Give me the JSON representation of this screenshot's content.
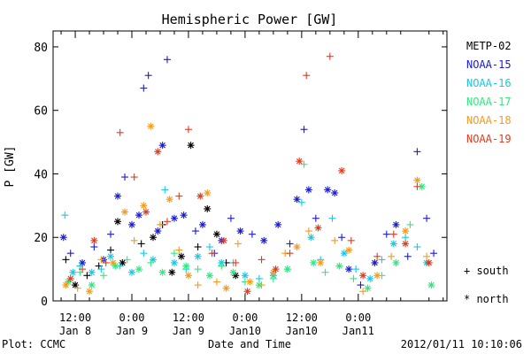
{
  "chart_data": {
    "type": "scatter",
    "title": "Hemispheric Power [GW]",
    "ylabel": "P [GW]",
    "xlabel": "Date and Time",
    "ylim": [
      0,
      85
    ],
    "yticks": [
      0,
      20,
      40,
      60,
      80
    ],
    "x_unit": "hours since 2012-01-08 00:00",
    "xlim": [
      7.3,
      90.8
    ],
    "xticks": [
      {
        "x": 12,
        "line1": "12:00",
        "line2": "Jan 8"
      },
      {
        "x": 24,
        "line1": "0:00",
        "line2": "Jan 9"
      },
      {
        "x": 36,
        "line1": "12:00",
        "line2": "Jan 9"
      },
      {
        "x": 48,
        "line1": "0:00",
        "line2": "Jan10"
      },
      {
        "x": 60,
        "line1": "12:00",
        "line2": "Jan10"
      },
      {
        "x": 72,
        "line1": "0:00",
        "line2": "Jan11"
      }
    ],
    "grid": false,
    "legend_position": "right",
    "marker_legend": {
      "south": "+ south",
      "north": "* north"
    },
    "series": [
      {
        "name": "METP-02",
        "color": "#000000",
        "points": [
          [
            10.0,
            13,
            "s"
          ],
          [
            12.0,
            5,
            "n"
          ],
          [
            14.5,
            8,
            "s"
          ],
          [
            17.0,
            11,
            "s"
          ],
          [
            19.5,
            16,
            "s"
          ],
          [
            21.0,
            25,
            "n"
          ],
          [
            22.0,
            12,
            "n"
          ],
          [
            26.0,
            18,
            "s"
          ],
          [
            28.5,
            20,
            "n"
          ],
          [
            30.5,
            24,
            "s"
          ],
          [
            32.5,
            9,
            "n"
          ],
          [
            34.5,
            14,
            "n"
          ],
          [
            36.5,
            49,
            "n"
          ],
          [
            38.0,
            17,
            "s"
          ],
          [
            40.0,
            29,
            "n"
          ],
          [
            42.0,
            21,
            "n"
          ],
          [
            44.0,
            12,
            "s"
          ],
          [
            46.0,
            8,
            "n"
          ]
        ]
      },
      {
        "name": "NOAA-15",
        "color": "#1a1ad6",
        "points": [
          [
            9.5,
            20,
            "n"
          ],
          [
            11.0,
            15,
            "s"
          ],
          [
            13.5,
            12,
            "n"
          ],
          [
            16.0,
            17,
            "s"
          ],
          [
            18.0,
            13,
            "n"
          ],
          [
            19.5,
            21,
            "s"
          ],
          [
            21.0,
            33,
            "n"
          ],
          [
            22.5,
            39,
            "s"
          ],
          [
            24.0,
            24,
            "n"
          ],
          [
            25.5,
            27,
            "n"
          ],
          [
            26.5,
            67,
            "s"
          ],
          [
            27.5,
            71,
            "s"
          ],
          [
            29.5,
            22,
            "n"
          ],
          [
            30.5,
            49,
            "n"
          ],
          [
            31.5,
            76,
            "s"
          ],
          [
            33.0,
            26,
            "n"
          ],
          [
            35.0,
            27,
            "n"
          ],
          [
            37.5,
            22,
            "s"
          ],
          [
            39.0,
            24,
            "n"
          ],
          [
            41.5,
            15,
            "s"
          ],
          [
            43.0,
            19,
            "n"
          ],
          [
            45.0,
            26,
            "s"
          ],
          [
            47.0,
            22,
            "n"
          ],
          [
            49.5,
            21,
            "s"
          ],
          [
            52.0,
            19,
            "n"
          ],
          [
            55.0,
            24,
            "n"
          ],
          [
            57.5,
            18,
            "s"
          ],
          [
            59.0,
            32,
            "n"
          ],
          [
            60.5,
            54,
            "s"
          ],
          [
            61.5,
            35,
            "n"
          ],
          [
            63.0,
            26,
            "s"
          ],
          [
            65.5,
            35,
            "n"
          ],
          [
            67.0,
            34,
            "n"
          ],
          [
            68.5,
            20,
            "s"
          ],
          [
            70.0,
            10,
            "n"
          ],
          [
            72.5,
            5,
            "s"
          ],
          [
            75.5,
            12,
            "n"
          ],
          [
            78.0,
            21,
            "s"
          ],
          [
            80.0,
            24,
            "n"
          ],
          [
            82.5,
            14,
            "s"
          ],
          [
            84.5,
            47,
            "s"
          ],
          [
            86.5,
            26,
            "s"
          ],
          [
            88.0,
            15,
            "s"
          ]
        ]
      },
      {
        "name": "NOAA-16",
        "color": "#16c8e6",
        "points": [
          [
            9.8,
            27,
            "s"
          ],
          [
            11.5,
            9,
            "n"
          ],
          [
            13.0,
            11,
            "s"
          ],
          [
            15.5,
            9,
            "n"
          ],
          [
            17.5,
            10,
            "s"
          ],
          [
            19.5,
            14,
            "n"
          ],
          [
            21.5,
            11,
            "s"
          ],
          [
            24.0,
            9,
            "n"
          ],
          [
            26.5,
            15,
            "s"
          ],
          [
            28.5,
            13,
            "n"
          ],
          [
            31.0,
            35,
            "s"
          ],
          [
            33.0,
            12,
            "n"
          ],
          [
            35.5,
            10,
            "s"
          ],
          [
            38.0,
            14,
            "n"
          ],
          [
            40.5,
            17,
            "s"
          ],
          [
            43.0,
            12,
            "n"
          ],
          [
            45.5,
            12,
            "s"
          ],
          [
            48.0,
            8,
            "n"
          ],
          [
            51.0,
            7,
            "s"
          ],
          [
            54.0,
            8,
            "n"
          ],
          [
            57.0,
            10,
            "s"
          ],
          [
            60.0,
            31,
            "s"
          ],
          [
            62.0,
            20,
            "n"
          ],
          [
            64.0,
            13,
            "s"
          ],
          [
            66.5,
            26,
            "s"
          ],
          [
            69.0,
            15,
            "n"
          ],
          [
            71.5,
            10,
            "s"
          ],
          [
            74.5,
            7,
            "n"
          ],
          [
            77.0,
            13,
            "s"
          ],
          [
            79.5,
            18,
            "n"
          ],
          [
            82.0,
            20,
            "s"
          ],
          [
            84.5,
            17,
            "s"
          ],
          [
            86.5,
            12,
            "n"
          ]
        ]
      },
      {
        "name": "NOAA-17",
        "color": "#30e880",
        "points": [
          [
            10.5,
            6,
            "n"
          ],
          [
            13.0,
            9,
            "s"
          ],
          [
            15.5,
            5,
            "n"
          ],
          [
            18.0,
            8,
            "s"
          ],
          [
            20.5,
            11,
            "n"
          ],
          [
            23.0,
            13,
            "s"
          ],
          [
            25.5,
            10,
            "n"
          ],
          [
            28.0,
            12,
            "s"
          ],
          [
            30.5,
            9,
            "n"
          ],
          [
            33.0,
            15,
            "s"
          ],
          [
            35.5,
            11,
            "n"
          ],
          [
            38.0,
            10,
            "s"
          ],
          [
            40.5,
            8,
            "n"
          ],
          [
            43.0,
            11,
            "s"
          ],
          [
            45.5,
            9,
            "n"
          ],
          [
            48.0,
            6,
            "s"
          ],
          [
            51.0,
            5,
            "n"
          ],
          [
            54.0,
            7,
            "s"
          ],
          [
            57.0,
            10,
            "n"
          ],
          [
            60.5,
            43,
            "s"
          ],
          [
            62.5,
            12,
            "n"
          ],
          [
            65.0,
            9,
            "s"
          ],
          [
            68.0,
            11,
            "n"
          ],
          [
            71.0,
            7,
            "s"
          ],
          [
            74.0,
            4,
            "n"
          ],
          [
            77.0,
            8,
            "s"
          ],
          [
            80.0,
            12,
            "n"
          ],
          [
            83.0,
            24,
            "s"
          ],
          [
            85.5,
            36,
            "n"
          ],
          [
            87.5,
            5,
            "n"
          ]
        ]
      },
      {
        "name": "NOAA-18",
        "color": "#f59a1c",
        "points": [
          [
            10.0,
            5,
            "n"
          ],
          [
            12.5,
            4,
            "s"
          ],
          [
            15.0,
            3,
            "n"
          ],
          [
            17.5,
            13,
            "s"
          ],
          [
            20.0,
            12,
            "n"
          ],
          [
            22.5,
            28,
            "n"
          ],
          [
            24.5,
            19,
            "s"
          ],
          [
            26.5,
            30,
            "n"
          ],
          [
            28.0,
            55,
            "n"
          ],
          [
            30.0,
            24,
            "s"
          ],
          [
            32.0,
            32,
            "n"
          ],
          [
            34.0,
            16,
            "s"
          ],
          [
            36.0,
            8,
            "n"
          ],
          [
            38.0,
            5,
            "s"
          ],
          [
            40.0,
            34,
            "n"
          ],
          [
            42.0,
            6,
            "s"
          ],
          [
            44.0,
            4,
            "n"
          ],
          [
            46.5,
            18,
            "s"
          ],
          [
            49.0,
            6,
            "n"
          ],
          [
            51.5,
            5,
            "s"
          ],
          [
            54.0,
            9,
            "n"
          ],
          [
            56.5,
            15,
            "s"
          ],
          [
            59.0,
            17,
            "n"
          ],
          [
            61.5,
            22,
            "s"
          ],
          [
            64.0,
            12,
            "n"
          ],
          [
            67.0,
            19,
            "s"
          ],
          [
            70.0,
            16,
            "n"
          ],
          [
            73.0,
            3,
            "s"
          ],
          [
            76.0,
            8,
            "n"
          ],
          [
            79.0,
            14,
            "s"
          ],
          [
            82.0,
            22,
            "n"
          ],
          [
            84.5,
            38,
            "n"
          ],
          [
            86.5,
            14,
            "s"
          ]
        ]
      },
      {
        "name": "NOAA-19",
        "color": "#e23a1c",
        "points": [
          [
            11.0,
            7,
            "n"
          ],
          [
            13.5,
            10,
            "s"
          ],
          [
            16.0,
            19,
            "n"
          ],
          [
            18.5,
            12,
            "s"
          ],
          [
            21.5,
            53,
            "s"
          ],
          [
            24.5,
            39,
            "s"
          ],
          [
            27.0,
            28,
            "n"
          ],
          [
            29.5,
            47,
            "n"
          ],
          [
            31.5,
            25,
            "s"
          ],
          [
            34.0,
            33,
            "s"
          ],
          [
            36.0,
            54,
            "s"
          ],
          [
            38.5,
            33,
            "n"
          ],
          [
            41.0,
            15,
            "s"
          ],
          [
            43.5,
            19,
            "n"
          ],
          [
            46.0,
            12,
            "s"
          ],
          [
            48.5,
            3,
            "n"
          ],
          [
            51.5,
            13,
            "s"
          ],
          [
            54.5,
            10,
            "n"
          ],
          [
            57.5,
            15,
            "s"
          ],
          [
            59.5,
            44,
            "n"
          ],
          [
            61.0,
            71,
            "s"
          ],
          [
            63.5,
            23,
            "n"
          ],
          [
            66.0,
            77,
            "s"
          ],
          [
            68.5,
            41,
            "n"
          ],
          [
            70.5,
            19,
            "s"
          ],
          [
            73.0,
            8,
            "n"
          ],
          [
            76.0,
            14,
            "s"
          ],
          [
            79.5,
            21,
            "s"
          ],
          [
            82.0,
            18,
            "n"
          ],
          [
            84.5,
            36,
            "s"
          ],
          [
            87.0,
            12,
            "n"
          ]
        ]
      }
    ],
    "footer": {
      "left": "Plot: CCMC",
      "right": "2012/01/11 10:10:06"
    }
  }
}
